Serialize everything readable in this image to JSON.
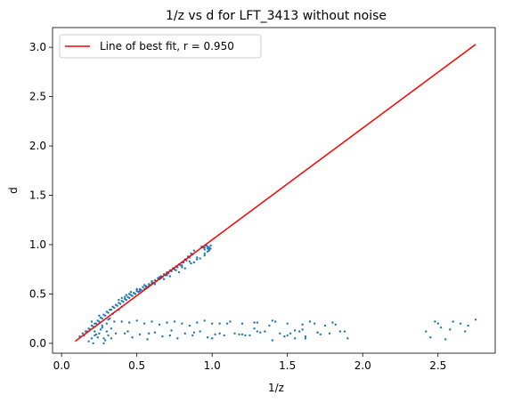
{
  "chart_data": {
    "type": "scatter",
    "title": "1/z vs d for LFT_3413 without noise",
    "xlabel": "1/z",
    "ylabel": "d",
    "xlim": [
      -0.06,
      2.88
    ],
    "ylim": [
      -0.1,
      3.2
    ],
    "xticks": [
      0.0,
      0.5,
      1.0,
      1.5,
      2.0,
      2.5
    ],
    "xtick_labels": [
      "0.0",
      "0.5",
      "1.0",
      "1.5",
      "2.0",
      "2.5"
    ],
    "yticks": [
      0.0,
      0.5,
      1.0,
      1.5,
      2.0,
      2.5,
      3.0
    ],
    "ytick_labels": [
      "0.0",
      "0.5",
      "1.0",
      "1.5",
      "2.0",
      "2.5",
      "3.0"
    ],
    "grid": false,
    "legend_position": "top-left",
    "scatter_color": "#1f77b4",
    "line_color": "#ff0000",
    "fit_line": {
      "name": "Line of best fit, r = 0.950",
      "x": [
        0.09,
        2.75
      ],
      "y": [
        0.02,
        3.03
      ]
    },
    "scatter_points": {
      "x": [
        0.12,
        0.14,
        0.16,
        0.18,
        0.2,
        0.22,
        0.24,
        0.26,
        0.28,
        0.3,
        0.32,
        0.34,
        0.36,
        0.38,
        0.4,
        0.42,
        0.44,
        0.46,
        0.48,
        0.5,
        0.52,
        0.54,
        0.56,
        0.58,
        0.6,
        0.62,
        0.64,
        0.66,
        0.68,
        0.7,
        0.72,
        0.74,
        0.76,
        0.78,
        0.8,
        0.82,
        0.84,
        0.86,
        0.88,
        0.15,
        0.17,
        0.19,
        0.21,
        0.23,
        0.25,
        0.27,
        0.29,
        0.31,
        0.33,
        0.35,
        0.37,
        0.39,
        0.41,
        0.43,
        0.45,
        0.47,
        0.49,
        0.51,
        0.53,
        0.55,
        0.57,
        0.59,
        0.61,
        0.63,
        0.65,
        0.67,
        0.69,
        0.71,
        0.73,
        0.75,
        0.77,
        0.79,
        0.81,
        0.83,
        0.85,
        0.87,
        0.2,
        0.22,
        0.25,
        0.28,
        0.3,
        0.33,
        0.18,
        0.24,
        0.27,
        0.31,
        0.35,
        0.21,
        0.26,
        0.29,
        0.32,
        0.23,
        0.2,
        0.28,
        0.34,
        0.3,
        0.36,
        0.38,
        0.4,
        0.25,
        0.33,
        0.27,
        0.22,
        0.31,
        0.38,
        0.4,
        0.43,
        0.46,
        0.5,
        0.55,
        0.6,
        0.65,
        0.7,
        0.75,
        0.8,
        0.85,
        0.9,
        0.95,
        0.42,
        0.48,
        0.52,
        0.58,
        0.62,
        0.68,
        0.72,
        0.78,
        0.82,
        0.88,
        0.92,
        0.97,
        0.45,
        0.5,
        0.56,
        0.6,
        0.66,
        0.7,
        0.76,
        0.8,
        0.86,
        0.9,
        0.95,
        0.98,
        0.93,
        0.95,
        0.96,
        0.97,
        0.97,
        0.98,
        0.95,
        0.96,
        0.99,
        0.99,
        0.98,
        0.94,
        0.4,
        0.45,
        0.5,
        0.55,
        0.6,
        0.65,
        0.7,
        0.75,
        0.8,
        0.85,
        0.9,
        0.95,
        1.0,
        0.42,
        0.52,
        0.62,
        0.72,
        0.82,
        0.92,
        1.02,
        0.47,
        0.57,
        0.67,
        0.77,
        0.87,
        0.97,
        0.44,
        0.58,
        0.73,
        0.88,
        1.05,
        1.12,
        1.2,
        1.25,
        1.3,
        1.35,
        1.4,
        1.45,
        1.5,
        1.55,
        1.6,
        1.65,
        1.7,
        1.75,
        1.8,
        1.85,
        1.05,
        1.15,
        1.22,
        1.32,
        1.42,
        1.52,
        1.62,
        1.72,
        1.82,
        1.88,
        1.08,
        1.18,
        1.28,
        1.38,
        1.48,
        1.58,
        1.68,
        1.78,
        1.28,
        1.55,
        1.62,
        2.42,
        2.45,
        2.48,
        2.5,
        2.55,
        2.58,
        2.65,
        2.7,
        2.75,
        2.52,
        2.68,
        2.6,
        1.0,
        1.1,
        1.3,
        1.5,
        1.7,
        1.9,
        1.2,
        1.4,
        1.6
      ],
      "y": [
        0.07,
        0.1,
        0.12,
        0.15,
        0.18,
        0.2,
        0.23,
        0.26,
        0.29,
        0.32,
        0.34,
        0.37,
        0.39,
        0.41,
        0.43,
        0.45,
        0.47,
        0.49,
        0.51,
        0.53,
        0.55,
        0.57,
        0.58,
        0.6,
        0.62,
        0.64,
        0.66,
        0.68,
        0.7,
        0.72,
        0.74,
        0.76,
        0.78,
        0.8,
        0.82,
        0.85,
        0.88,
        0.91,
        0.94,
        0.08,
        0.12,
        0.14,
        0.17,
        0.2,
        0.22,
        0.25,
        0.28,
        0.31,
        0.34,
        0.36,
        0.38,
        0.4,
        0.42,
        0.44,
        0.46,
        0.48,
        0.5,
        0.52,
        0.54,
        0.55,
        0.57,
        0.59,
        0.61,
        0.63,
        0.65,
        0.67,
        0.69,
        0.71,
        0.73,
        0.75,
        0.77,
        0.79,
        0.82,
        0.84,
        0.87,
        0.9,
        0.05,
        0.08,
        0.1,
        0.05,
        0.12,
        0.15,
        0.02,
        0.06,
        0.18,
        0.08,
        0.22,
        0.0,
        0.14,
        0.03,
        0.25,
        0.09,
        0.22,
        0.0,
        0.3,
        0.2,
        0.1,
        0.34,
        0.37,
        0.28,
        0.05,
        0.16,
        0.12,
        0.24,
        0.44,
        0.46,
        0.49,
        0.52,
        0.55,
        0.59,
        0.63,
        0.67,
        0.71,
        0.75,
        0.79,
        0.83,
        0.87,
        0.91,
        0.47,
        0.51,
        0.53,
        0.58,
        0.6,
        0.65,
        0.68,
        0.72,
        0.76,
        0.82,
        0.86,
        0.93,
        0.5,
        0.54,
        0.57,
        0.61,
        0.66,
        0.69,
        0.74,
        0.77,
        0.81,
        0.85,
        0.89,
        0.95,
        0.98,
        0.97,
        0.99,
        0.96,
        0.98,
        0.97,
        0.95,
        1.0,
        0.99,
        0.96,
        0.94,
        0.97,
        0.22,
        0.21,
        0.23,
        0.2,
        0.22,
        0.19,
        0.21,
        0.22,
        0.2,
        0.18,
        0.21,
        0.23,
        0.2,
        0.1,
        0.09,
        0.11,
        0.08,
        0.1,
        0.12,
        0.09,
        0.06,
        0.04,
        0.07,
        0.05,
        0.08,
        0.06,
        0.12,
        0.1,
        0.13,
        0.11,
        0.1,
        0.22,
        0.2,
        0.08,
        0.21,
        0.12,
        0.23,
        0.1,
        0.2,
        0.05,
        0.19,
        0.22,
        0.11,
        0.18,
        0.21,
        0.12,
        0.2,
        0.1,
        0.08,
        0.11,
        0.22,
        0.1,
        0.07,
        0.09,
        0.19,
        0.12,
        0.08,
        0.09,
        0.21,
        0.18,
        0.07,
        0.12,
        0.2,
        0.1,
        0.15,
        0.13,
        0.05,
        0.12,
        0.06,
        0.22,
        0.2,
        0.04,
        0.14,
        0.2,
        0.18,
        0.24,
        0.16,
        0.12,
        0.22,
        0.05,
        0.2,
        0.12,
        0.08,
        0.11,
        0.05,
        0.09,
        0.03,
        0.14
      ]
    }
  }
}
